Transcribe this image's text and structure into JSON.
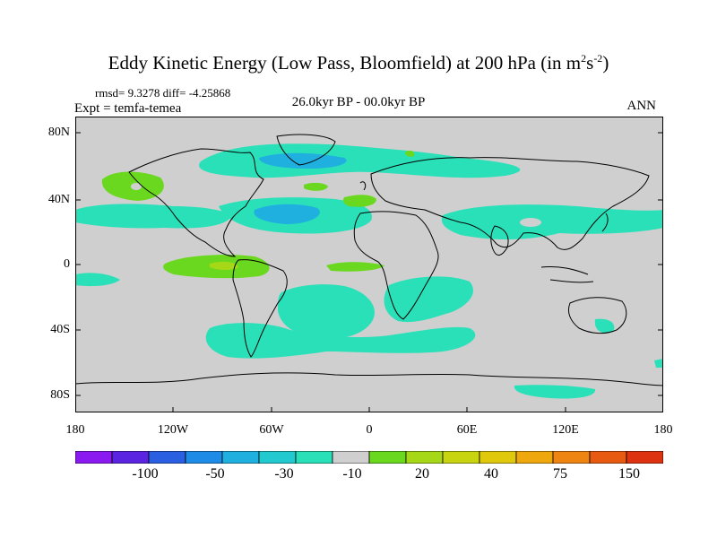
{
  "header": {
    "title_main": "Eddy Kinetic Energy (Low Pass, Bloomfield) at 200 hPa (in m",
    "title_sup1": "2",
    "title_mid": "s",
    "title_sup2": "-2",
    "title_end": ")",
    "stats": "rmsd= 9.3278 diff= -4.25868",
    "expt": "Expt = temfa-temea",
    "period": "26.0kyr BP - 00.0kyr BP",
    "season": "ANN"
  },
  "axes": {
    "lat_labels": [
      "80N",
      "40N",
      "0",
      "40S",
      "80S"
    ],
    "lon_labels": [
      "180",
      "120W",
      "60W",
      "0",
      "60E",
      "120E",
      "180"
    ]
  },
  "colorbar": {
    "colors": [
      "#8a1aef",
      "#5a24e0",
      "#2a5fe2",
      "#1e8be6",
      "#1fb0e0",
      "#22c9cf",
      "#2ae0b8",
      "#cfcfcf",
      "#6ad81e",
      "#a6d818",
      "#c8d40f",
      "#e0c80d",
      "#eea80e",
      "#ee8412",
      "#e65a12",
      "#de3310"
    ],
    "tick_labels": [
      "-100",
      "-50",
      "-30",
      "-10",
      "20",
      "40",
      "75",
      "150"
    ]
  },
  "map": {
    "background": "#cfcfcf",
    "land_outline_color": "#000000"
  }
}
